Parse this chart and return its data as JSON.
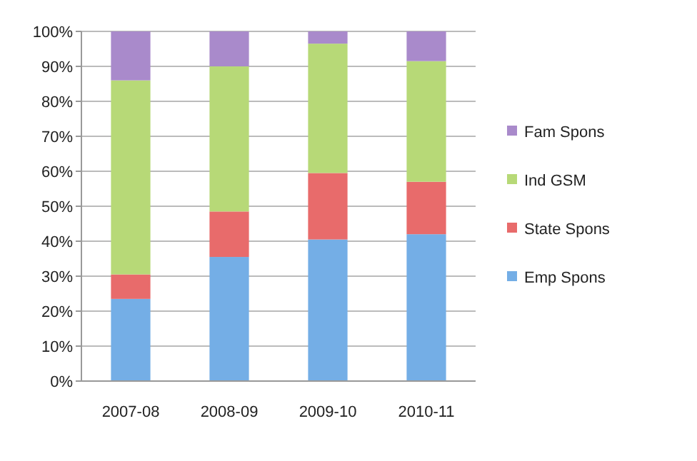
{
  "chart_data": {
    "type": "bar",
    "stacked": true,
    "categories": [
      "2007-08",
      "2008-09",
      "2009-10",
      "2010-11"
    ],
    "series": [
      {
        "name": "Emp Spons",
        "color": "#74aee6",
        "values": [
          23.5,
          35.5,
          40.5,
          42
        ]
      },
      {
        "name": "State Spons",
        "color": "#e86b6b",
        "values": [
          7,
          13,
          19,
          15
        ]
      },
      {
        "name": "Ind GSM",
        "color": "#b7d977",
        "values": [
          55.5,
          41.5,
          37,
          34.5
        ]
      },
      {
        "name": "Fam Spons",
        "color": "#a98acb",
        "values": [
          14,
          10,
          3.5,
          8.5
        ]
      }
    ],
    "ylim": [
      0,
      100
    ],
    "yticks": [
      {
        "value": 0,
        "label": "0%"
      },
      {
        "value": 10,
        "label": "10%"
      },
      {
        "value": 20,
        "label": "20%"
      },
      {
        "value": 30,
        "label": "30%"
      },
      {
        "value": 40,
        "label": "40%"
      },
      {
        "value": 50,
        "label": "50%"
      },
      {
        "value": 60,
        "label": "60%"
      },
      {
        "value": 70,
        "label": "70%"
      },
      {
        "value": 80,
        "label": "80%"
      },
      {
        "value": 90,
        "label": "90%"
      },
      {
        "value": 100,
        "label": "100%"
      }
    ],
    "grid": "y",
    "legend": "right"
  }
}
